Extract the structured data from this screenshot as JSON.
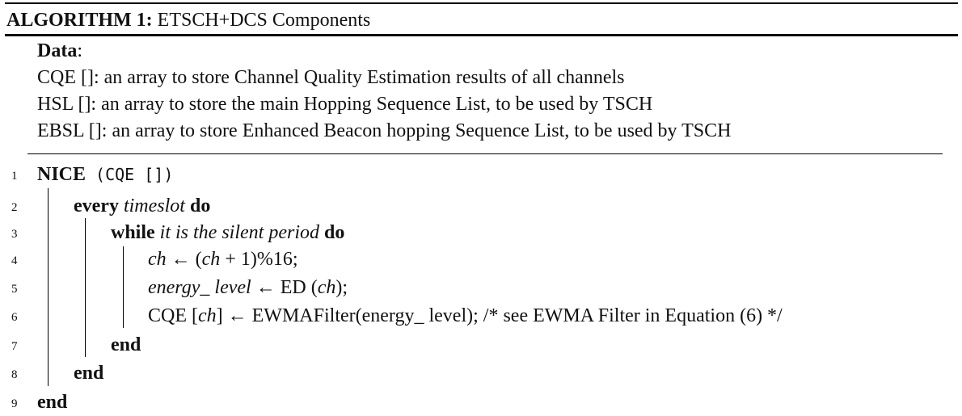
{
  "header": {
    "label": "ALGORITHM 1:",
    "title": "ETSCH+DCS Components"
  },
  "data_section": {
    "title": "Data",
    "colon": ":",
    "items": [
      "CQE []: an array to store Channel Quality Estimation results of all channels",
      "HSL []: an array to store the main Hopping Sequence List, to be used by TSCH",
      "EBSL []: an array to store Enhanced Beacon hopping Sequence List, to be used by TSCH"
    ]
  },
  "lines": [
    {
      "no": "1",
      "func": "NICE",
      "arg": " (CQE [])"
    },
    {
      "no": "2",
      "kw1": "every",
      "cond": "timeslot",
      "kw2": "do"
    },
    {
      "no": "3",
      "kw1": "while",
      "cond": "it is the silent period",
      "kw2": "do"
    },
    {
      "no": "4",
      "var": "ch",
      "expr": " ← (",
      "var2": "ch",
      "expr2": " + 1)%16;"
    },
    {
      "no": "5",
      "var": "energy_ level",
      "expr": " ← ED (",
      "var2": "ch",
      "expr2": ");"
    },
    {
      "no": "6",
      "pre": "CQE [",
      "var": "ch",
      "expr": "] ← EWMAFilter(energy_ level); /* see EWMA Filter in Equation (6) */"
    },
    {
      "no": "7",
      "kw": "end"
    },
    {
      "no": "8",
      "kw": "end"
    },
    {
      "no": "9",
      "kw": "end"
    }
  ]
}
